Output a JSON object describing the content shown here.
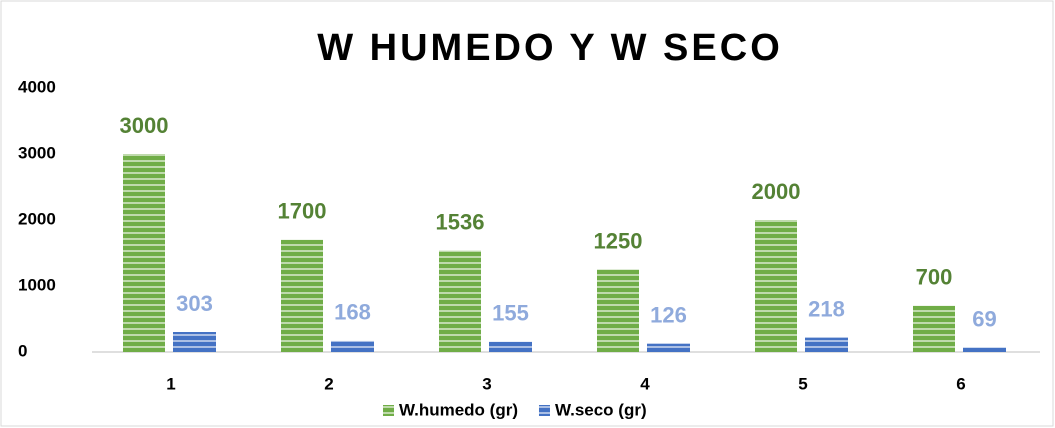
{
  "chart_data": {
    "type": "bar",
    "title": "W HUMEDO Y W SECO",
    "categories": [
      "1",
      "2",
      "3",
      "4",
      "5",
      "6"
    ],
    "series": [
      {
        "name": "W.humedo (gr)",
        "color": "#70ad47",
        "label_color": "#548235",
        "values": [
          3000,
          1700,
          1536,
          1250,
          2000,
          700
        ]
      },
      {
        "name": "W.seco (gr)",
        "color": "#4472c4",
        "label_color": "#8faadc",
        "values": [
          303,
          168,
          155,
          126,
          218,
          69
        ]
      }
    ],
    "ylim": [
      0,
      4000
    ],
    "yticks": [
      0,
      1000,
      2000,
      3000,
      4000
    ],
    "grid": false,
    "legend": "bottom"
  }
}
